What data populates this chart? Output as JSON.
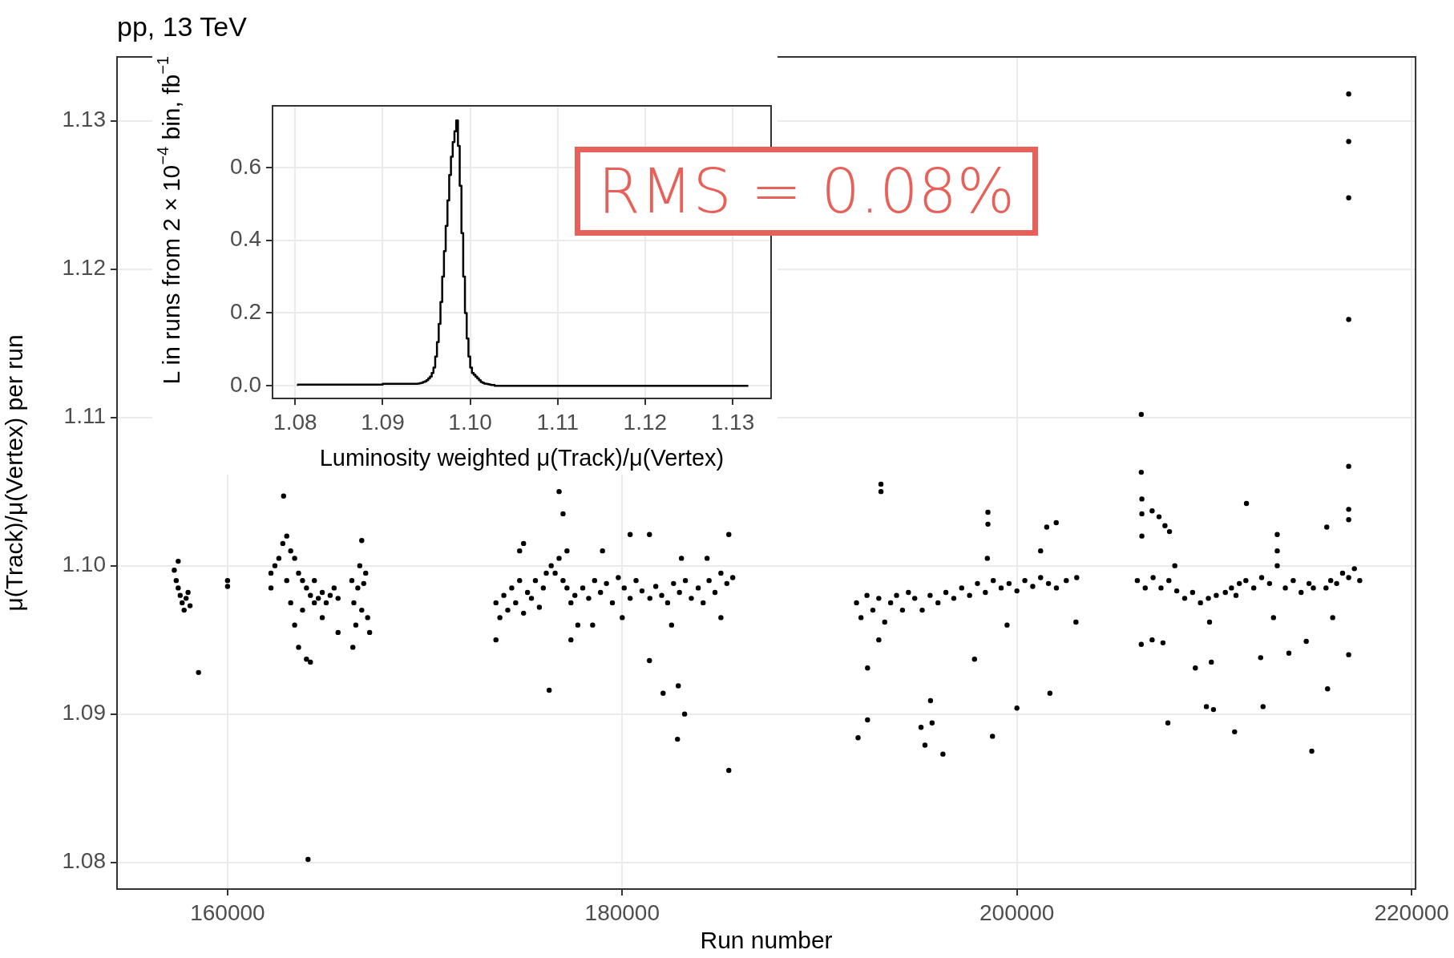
{
  "chart_data": [
    {
      "type": "scatter",
      "title": "pp, 13 TeV",
      "xlabel": "Run number",
      "ylabel": "μ(Track)/μ(Vertex) per run",
      "color": "#000000",
      "marker": "circle",
      "grid": true,
      "xlim": [
        154400,
        220200
      ],
      "xticks": [
        160000,
        180000,
        200000,
        220000
      ],
      "ylim": [
        1.0782,
        1.1343
      ],
      "yticks": [
        1.08,
        1.09,
        {
          "value": 1.1,
          "label": "1.10"
        },
        1.11,
        1.12,
        1.13
      ],
      "annotations": [
        "RMS = 0.08%"
      ],
      "x": [
        157300,
        157400,
        157500,
        157600,
        157700,
        157800,
        157900,
        158000,
        158100,
        157500,
        158530,
        160000,
        160000,
        162200,
        162200,
        162400,
        162600,
        162800,
        162840,
        163000,
        163000,
        163200,
        163200,
        163400,
        163400,
        163600,
        163800,
        163800,
        164000,
        164080,
        164000,
        164200,
        164400,
        164400,
        164600,
        164800,
        164800,
        165000,
        165200,
        165400,
        165600,
        165600,
        164200,
        163600,
        166300,
        166400,
        166500,
        166600,
        166700,
        166800,
        166900,
        167000,
        167100,
        167200,
        166800,
        166350,
        173600,
        173600,
        173800,
        174000,
        174200,
        174400,
        174600,
        174800,
        175000,
        175200,
        175400,
        175600,
        175800,
        176000,
        176150,
        174800,
        175000,
        176400,
        176600,
        176800,
        176800,
        177000,
        176300,
        177000,
        177200,
        177400,
        177600,
        177750,
        177400,
        177200,
        178000,
        178300,
        178600,
        178900,
        179200,
        179500,
        179800,
        180100,
        180400,
        180700,
        181000,
        181400,
        181700,
        182000,
        182300,
        182600,
        182900,
        183200,
        183500,
        178500,
        179000,
        180400,
        181380,
        181380,
        180000,
        182070,
        182840,
        183160,
        182800,
        182500,
        183000,
        183850,
        184100,
        184400,
        184700,
        185000,
        185300,
        185600,
        185400,
        185400,
        185000,
        184300,
        191870,
        192100,
        192400,
        192700,
        193000,
        193300,
        193600,
        193900,
        194200,
        194500,
        193110,
        193110,
        191950,
        192430,
        192430,
        193000,
        194820,
        195200,
        195600,
        196000,
        196400,
        196800,
        197200,
        197600,
        198000,
        198400,
        198800,
        199200,
        199600,
        200000,
        200400,
        200800,
        201200,
        201600,
        202000,
        202500,
        203030,
        195140,
        195340,
        195620,
        195700,
        196250,
        198530,
        198530,
        198760,
        200000,
        201670,
        201990,
        201510,
        202990,
        197850,
        198500,
        199500,
        201200,
        206100,
        206330,
        206330,
        206330,
        206300,
        206300,
        206500,
        206850,
        207200,
        207500,
        207730,
        206900,
        207300,
        207700,
        208100,
        208500,
        208900,
        209300,
        209700,
        210100,
        210560,
        209760,
        209850,
        209960,
        207650,
        209040,
        209600,
        206300,
        206850,
        207400,
        208000,
        210870,
        211100,
        211270,
        211030,
        211630,
        211600,
        212000,
        212400,
        212800,
        213190,
        213190,
        213190,
        213600,
        214000,
        214400,
        214800,
        215020,
        212350,
        212470,
        214940,
        213780,
        214660,
        213000,
        215660,
        215900,
        216200,
        216500,
        216810,
        217100,
        217370,
        216810,
        216810,
        216810,
        216810,
        216810,
        216810,
        216810,
        216810,
        215740,
        215700,
        216000
      ],
      "values": [
        1.0997,
        1.099,
        1.0985,
        1.098,
        1.0975,
        1.097,
        1.0978,
        1.0982,
        1.0973,
        1.1003,
        1.0928,
        1.099,
        1.0986,
        1.0995,
        1.0985,
        1.1,
        1.1005,
        1.1015,
        1.1047,
        1.102,
        1.099,
        1.101,
        1.0975,
        1.1005,
        1.096,
        1.0995,
        1.099,
        1.097,
        1.0985,
        1.0802,
        1.0937,
        1.098,
        1.0975,
        1.099,
        1.0978,
        1.0982,
        1.0965,
        1.0975,
        1.098,
        1.0985,
        1.0978,
        1.0955,
        1.0935,
        1.0945,
        1.099,
        1.0975,
        1.096,
        1.0985,
        1.1,
        1.097,
        1.0988,
        1.0995,
        1.0965,
        1.0955,
        1.1017,
        1.0945,
        1.0975,
        1.095,
        1.0965,
        1.098,
        1.097,
        1.0985,
        1.0975,
        1.099,
        1.0968,
        1.0982,
        1.0978,
        1.099,
        1.0972,
        1.0985,
        1.0995,
        1.101,
        1.1015,
        1.1,
        1.0995,
        1.1005,
        1.105,
        1.1035,
        1.0916,
        1.099,
        1.0985,
        1.0975,
        1.098,
        1.096,
        1.095,
        1.101,
        1.0985,
        1.0978,
        1.099,
        1.0982,
        1.0988,
        1.0975,
        1.0992,
        1.0985,
        1.0978,
        1.099,
        1.0983,
        1.0978,
        1.0986,
        1.098,
        1.0975,
        1.0988,
        1.0982,
        1.099,
        1.0978,
        1.096,
        1.101,
        1.1021,
        1.1021,
        1.0936,
        1.0965,
        1.0914,
        1.0919,
        1.09,
        1.0883,
        1.096,
        1.1005,
        1.0985,
        1.0975,
        1.099,
        1.0982,
        1.0995,
        1.0988,
        1.0992,
        1.0862,
        1.1021,
        1.0965,
        1.1005,
        1.0975,
        1.0965,
        1.098,
        1.097,
        1.0978,
        1.0962,
        1.0975,
        1.098,
        1.097,
        1.0982,
        1.1055,
        1.105,
        1.0884,
        1.0896,
        1.0931,
        1.095,
        1.0978,
        1.097,
        1.098,
        1.0975,
        1.0982,
        1.0978,
        1.0985,
        1.098,
        1.0988,
        1.0982,
        1.099,
        1.0985,
        1.0988,
        1.0983,
        1.099,
        1.0986,
        1.0992,
        1.0988,
        1.0985,
        1.099,
        1.0992,
        1.0891,
        1.0879,
        1.0909,
        1.0894,
        1.0873,
        1.1036,
        1.1028,
        1.0885,
        1.0904,
        1.0914,
        1.1029,
        1.1026,
        1.0962,
        1.0937,
        1.1005,
        1.096,
        1.101,
        1.099,
        1.1045,
        1.1035,
        1.102,
        1.1063,
        1.1102,
        1.0985,
        1.1037,
        1.1033,
        1.1027,
        1.1023,
        1.0992,
        1.0985,
        1.099,
        1.0983,
        1.0978,
        1.0982,
        1.0975,
        1.0978,
        1.098,
        1.0982,
        1.0962,
        1.0935,
        1.0903,
        1.0894,
        1.0931,
        1.0905,
        1.0947,
        1.095,
        1.0948,
        1.1,
        1.0985,
        1.098,
        1.0988,
        1.0888,
        1.1042,
        1.099,
        1.0985,
        1.0992,
        1.0988,
        1.1021,
        1.101,
        1.1,
        1.0985,
        1.099,
        1.0982,
        1.0988,
        1.0985,
        1.0938,
        1.0905,
        1.0875,
        1.0941,
        1.0949,
        1.0965,
        1.0985,
        1.099,
        1.0988,
        1.0995,
        1.0992,
        1.0998,
        1.099,
        1.1067,
        1.1038,
        1.1031,
        1.1318,
        1.1286,
        1.1248,
        1.1166,
        1.094,
        1.0917,
        1.1026,
        1.0965
      ]
    },
    {
      "type": "histogram",
      "xlabel": "Luminosity weighted μ(Track)/μ(Vertex)",
      "ylabel": "L in runs from  2×10$^{−4}$  bin, fb$^{−1}$",
      "color": "#000000",
      "grid": true,
      "xlim": [
        1.0774,
        1.1344
      ],
      "xticks": [
        1.08,
        1.09,
        {
          "value": 1.1,
          "label": "1.10"
        },
        1.11,
        1.12,
        1.13
      ],
      "ylim": [
        -0.035,
        0.77
      ],
      "yticks": [
        {
          "value": 0,
          "label": "0.0"
        },
        0.2,
        0.4,
        0.6
      ],
      "bins": [
        1.0803,
        1.09,
        1.094,
        1.0942,
        1.0944,
        1.0946,
        1.0948,
        1.095,
        1.0952,
        1.0954,
        1.0956,
        1.0958,
        1.096,
        1.0962,
        1.0964,
        1.0966,
        1.0968,
        1.097,
        1.0972,
        1.0974,
        1.0976,
        1.0978,
        1.098,
        1.0982,
        1.0984,
        1.0986,
        1.0988,
        1.099,
        1.0992,
        1.0994,
        1.0996,
        1.0998,
        1.1,
        1.1002,
        1.1004,
        1.1006,
        1.1008,
        1.101,
        1.1012,
        1.1014,
        1.1016,
        1.1018,
        1.102,
        1.1022,
        1.1024,
        1.1026,
        1.1028,
        1.103,
        1.1318
      ],
      "values": [
        0,
        0.003,
        0.005,
        0.006,
        0.007,
        0.008,
        0.01,
        0.012,
        0.015,
        0.02,
        0.025,
        0.035,
        0.05,
        0.08,
        0.12,
        0.17,
        0.23,
        0.3,
        0.37,
        0.44,
        0.51,
        0.58,
        0.63,
        0.67,
        0.7,
        0.73,
        0.66,
        0.55,
        0.42,
        0.3,
        0.2,
        0.13,
        0.08,
        0.05,
        0.035,
        0.03,
        0.025,
        0.02,
        0.015,
        0.01,
        0.008,
        0.006,
        0.005,
        0.004,
        0.003,
        0.002,
        0.002,
        0
      ]
    }
  ]
}
